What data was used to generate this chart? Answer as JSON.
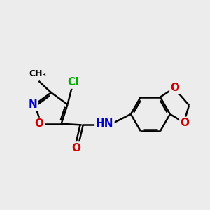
{
  "background_color": "#ececec",
  "bond_color": "#000000",
  "bond_width": 1.8,
  "atom_colors": {
    "N": "#0000cc",
    "O": "#cc0000",
    "Cl": "#00aa00",
    "C": "#000000"
  },
  "font_size": 10,
  "fig_width": 3.0,
  "fig_height": 3.0,
  "dpi": 100
}
